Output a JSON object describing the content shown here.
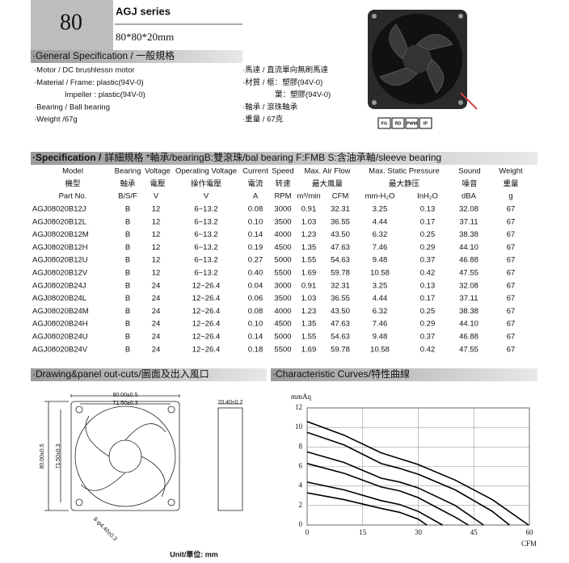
{
  "header": {
    "size": "80",
    "series": "AGJ series",
    "dimensions": "80*80*20mm"
  },
  "general": {
    "title": "·General Specification / 一般規格",
    "left": [
      "·Motor / DC brushlessn motor",
      "·Material / Frame: plastic(94V-0)",
      "Impeller : plastic(94V-0)",
      "·Bearing / Ball bearing",
      "·Weight /67g"
    ],
    "right": [
      "·馬達 / 直流單向無刷馬達",
      "·材質 / 框：塑膠(94V-0)",
      "葉：塑膠(94V-0)",
      "·軸承 / 滾珠軸承",
      "·重量 / 67克"
    ]
  },
  "icons": [
    "FG",
    "RD",
    "PWM",
    "IP"
  ],
  "specification": {
    "title_bold": "·Specification /",
    "title_rest": "詳細規格 *軸承/bearingB:雙滾珠/bal bearing F:FMB S:含油承軸/sleeve bearing",
    "header_rows": [
      [
        "Model",
        "Bearing",
        "Voltage",
        "Operating Voltage",
        "Current",
        "Speed",
        "Max. Air Flow",
        "Max. Static Pressure",
        "Sound",
        "Weight"
      ],
      [
        "機型",
        "軸承",
        "電壓",
        "操作電壓",
        "電流",
        "转速",
        "最大風量",
        "最大静压",
        "噪音",
        "重量"
      ],
      [
        "Part No.",
        "B/S/F",
        "V",
        "V",
        "A",
        "RPM",
        "m³/min",
        "CFM",
        "mm-H₂O",
        "InH₂O",
        "dBA",
        "g"
      ]
    ],
    "rows": [
      [
        "AGJ08020B12J",
        "B",
        "12",
        "6~13.2",
        "0.08",
        "3000",
        "0.91",
        "32.31",
        "3.25",
        "0.13",
        "32.08",
        "67"
      ],
      [
        "AGJ08020B12L",
        "B",
        "12",
        "6~13.2",
        "0.10",
        "3500",
        "1.03",
        "36.55",
        "4.44",
        "0.17",
        "37.11",
        "67"
      ],
      [
        "AGJ08020B12M",
        "B",
        "12",
        "6~13.2",
        "0.14",
        "4000",
        "1.23",
        "43.50",
        "6.32",
        "0.25",
        "38.38",
        "67"
      ],
      [
        "AGJ08020B12H",
        "B",
        "12",
        "6~13.2",
        "0.19",
        "4500",
        "1.35",
        "47.63",
        "7.46",
        "0.29",
        "44.10",
        "67"
      ],
      [
        "AGJ08020B12U",
        "B",
        "12",
        "6~13.2",
        "0.27",
        "5000",
        "1.55",
        "54.63",
        "9.48",
        "0.37",
        "46.88",
        "67"
      ],
      [
        "AGJ08020B12V",
        "B",
        "12",
        "6~13.2",
        "0.40",
        "5500",
        "1.69",
        "59.78",
        "10.58",
        "0.42",
        "47.55",
        "67"
      ],
      [
        "AGJ08020B24J",
        "B",
        "24",
        "12~26.4",
        "0.04",
        "3000",
        "0.91",
        "32.31",
        "3.25",
        "0.13",
        "32.08",
        "67"
      ],
      [
        "AGJ08020B24L",
        "B",
        "24",
        "12~26.4",
        "0.06",
        "3500",
        "1.03",
        "36.55",
        "4.44",
        "0.17",
        "37.11",
        "67"
      ],
      [
        "AGJ08020B24M",
        "B",
        "24",
        "12~26.4",
        "0.08",
        "4000",
        "1.23",
        "43.50",
        "6.32",
        "0.25",
        "38.38",
        "67"
      ],
      [
        "AGJ08020B24H",
        "B",
        "24",
        "12~26.4",
        "0.10",
        "4500",
        "1.35",
        "47.63",
        "7.46",
        "0.29",
        "44.10",
        "67"
      ],
      [
        "AGJ08020B24U",
        "B",
        "24",
        "12~26.4",
        "0.14",
        "5000",
        "1.55",
        "54.63",
        "9.48",
        "0.37",
        "46.88",
        "67"
      ],
      [
        "AGJ08020B24V",
        "B",
        "24",
        "12~26.4",
        "0.18",
        "5500",
        "1.69",
        "59.78",
        "10.58",
        "0.42",
        "47.55",
        "67"
      ]
    ]
  },
  "drawing": {
    "title": "·Drawing&panel out-cuts/圖面及出入風口",
    "labels": [
      "80.00±0.5",
      "71.50±0.3",
      "20.40±0.2",
      "80.00±0.5",
      "71.50±0.3",
      "8-φ4.40±0.3"
    ],
    "unit": "Unit/單位: mm"
  },
  "chart_data": {
    "type": "line",
    "title": "·Characteristic Curves/特性曲線",
    "y_label": "mmAq",
    "x_label": "CFM",
    "xlim": [
      0,
      60
    ],
    "ylim": [
      0,
      12
    ],
    "xticks": [
      0,
      15,
      30,
      45,
      60
    ],
    "yticks": [
      0,
      2,
      4,
      6,
      8,
      10,
      12
    ],
    "grid": true,
    "series": [
      {
        "color": "#000000",
        "x": [
          0,
          10,
          20,
          25,
          30,
          40,
          50,
          59.78
        ],
        "values": [
          10.6,
          9.2,
          7.4,
          6.8,
          6.2,
          4.6,
          2.6,
          0
        ]
      },
      {
        "color": "#000000",
        "x": [
          0,
          10,
          20,
          25,
          30,
          40,
          50,
          54.63
        ],
        "values": [
          9.5,
          8.2,
          6.3,
          5.8,
          5.2,
          3.6,
          1.4,
          0
        ]
      },
      {
        "color": "#000000",
        "x": [
          0,
          10,
          20,
          25,
          30,
          40,
          47.63
        ],
        "values": [
          7.5,
          6.4,
          4.8,
          4.4,
          3.8,
          2.0,
          0
        ]
      },
      {
        "color": "#000000",
        "x": [
          0,
          10,
          20,
          25,
          30,
          40,
          43.5
        ],
        "values": [
          6.3,
          5.3,
          3.9,
          3.5,
          2.8,
          0.8,
          0
        ]
      },
      {
        "color": "#000000",
        "x": [
          0,
          10,
          20,
          25,
          30,
          36.55
        ],
        "values": [
          4.4,
          3.6,
          2.5,
          2.1,
          1.4,
          0
        ]
      },
      {
        "color": "#000000",
        "x": [
          0,
          10,
          20,
          25,
          30,
          32.31
        ],
        "values": [
          3.3,
          2.6,
          1.7,
          1.3,
          0.6,
          0
        ]
      }
    ]
  }
}
